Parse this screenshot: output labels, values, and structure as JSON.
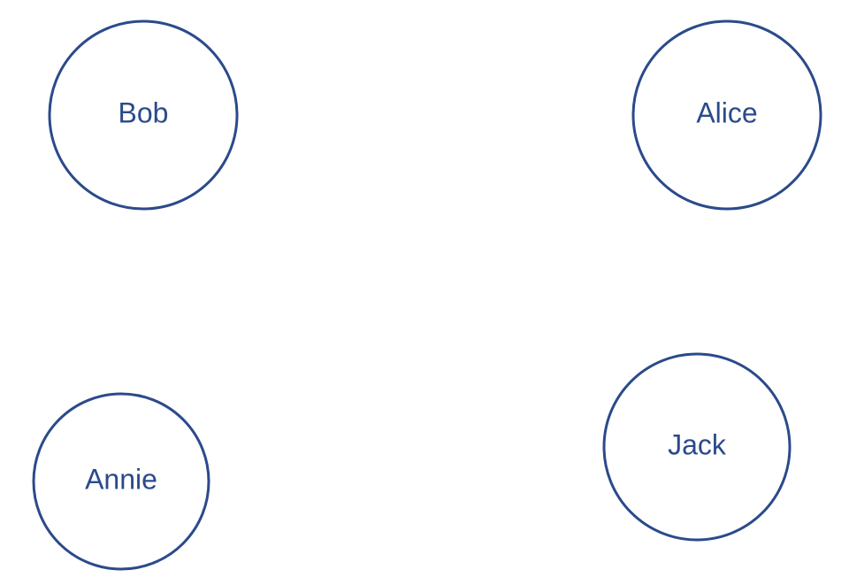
{
  "diagram": {
    "colors": {
      "stroke": "#2b4a8b",
      "text": "#2b4a8b",
      "background": "#ffffff"
    },
    "nodes": [
      {
        "label": "Bob"
      },
      {
        "label": "Alice"
      },
      {
        "label": "Annie"
      },
      {
        "label": "Jack"
      }
    ]
  }
}
